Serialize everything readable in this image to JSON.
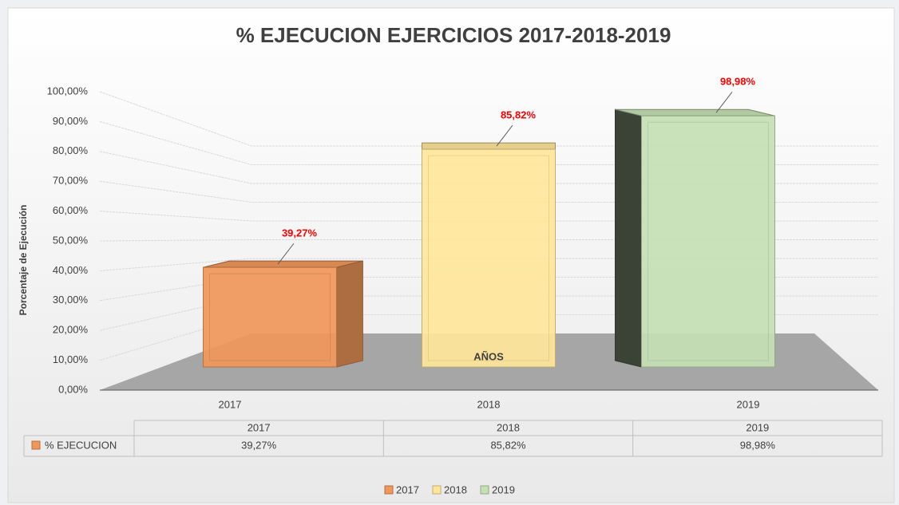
{
  "chart_data": {
    "type": "bar3d",
    "title": "% EJECUCION EJERCICIOS 2017-2018-2019",
    "y_label": "Porcentaje de Ejecución",
    "x_label": "AÑOS",
    "categories": [
      "2017",
      "2018",
      "2019"
    ],
    "colors": [
      "#f0975a",
      "#ffe699",
      "#c5e0b4"
    ],
    "series": [
      {
        "name": "% EJECUCION",
        "values": [
          39.27,
          85.82,
          98.98
        ],
        "value_labels": [
          "39,27%",
          "85,82%",
          "98,98%"
        ]
      }
    ],
    "ylim": [
      0,
      100
    ],
    "yticks": [
      {
        "value": 0,
        "label": "0,00%"
      },
      {
        "value": 10,
        "label": "10,00%"
      },
      {
        "value": 20,
        "label": "20,00%"
      },
      {
        "value": 30,
        "label": "30,00%"
      },
      {
        "value": 40,
        "label": "40,00%"
      },
      {
        "value": 50,
        "label": "50,00%"
      },
      {
        "value": 60,
        "label": "60,00%"
      },
      {
        "value": 70,
        "label": "70,00%"
      },
      {
        "value": 80,
        "label": "80,00%"
      },
      {
        "value": 90,
        "label": "90,00%"
      },
      {
        "value": 100,
        "label": "100,00%"
      }
    ],
    "grid": true
  }
}
